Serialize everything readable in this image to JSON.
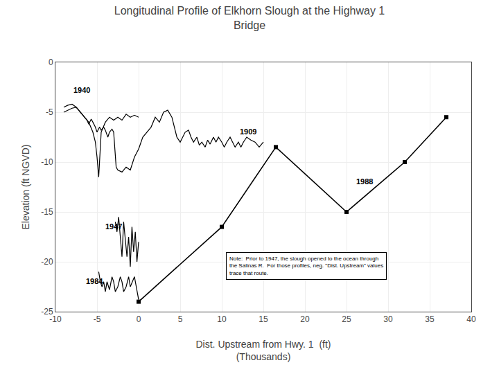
{
  "chart_data": {
    "type": "line",
    "title": "Longitudinal Profile of Elkhorn Slough at the Highway 1\nBridge",
    "xlabel": "Dist. Upstream from Hwy. 1  (ft)\n(Thousands)",
    "ylabel": "Elevation (ft NGVD)",
    "xlim": [
      -10,
      40
    ],
    "ylim": [
      -25,
      0
    ],
    "xticks": [
      -10,
      -5,
      0,
      5,
      10,
      15,
      20,
      25,
      30,
      35,
      40
    ],
    "yticks": [
      -25,
      -20,
      -15,
      -10,
      -5,
      0
    ],
    "grid": true,
    "annotations": [
      {
        "text": "Note:  Prior to 1947, the slough opened to the ocean through\nthe Salinas R.  For those profiles, neg. \"Dist. Upstream\" values\ntrace that route.",
        "x": 10.5,
        "y": -19
      }
    ],
    "series": [
      {
        "name": "1940",
        "color": "#000000",
        "marker": "none",
        "label_x": -8,
        "label_y": -3.3,
        "x": [
          -9,
          -8.5,
          -8,
          -7.5,
          -7,
          -6.5,
          -6,
          -5.5,
          -5.2,
          -5,
          -4.8,
          -4.5,
          -4,
          -3.5,
          -3,
          -2.5,
          -2,
          -1.5,
          -1,
          -0.5,
          0
        ],
        "values": [
          -4.5,
          -4.3,
          -4.2,
          -4.5,
          -5,
          -5.5,
          -6,
          -7,
          -8,
          -9.5,
          -11.5,
          -7,
          -6,
          -5.5,
          -5.8,
          -5.5,
          -5.8,
          -5.2,
          -5.5,
          -5.3,
          -5.5
        ]
      },
      {
        "name": "1909",
        "color": "#000000",
        "marker": "none",
        "label_x": 12,
        "label_y": -7.5,
        "x": [
          -9,
          -8.5,
          -8,
          -7.5,
          -7,
          -6.5,
          -6.2,
          -6,
          -5.7,
          -5.5,
          -5.2,
          -5,
          -4.7,
          -4.5,
          -4.2,
          -4,
          -3.7,
          -3.5,
          -3.2,
          -3,
          -2.7,
          -2.5,
          -2,
          -1.5,
          -1,
          -0.5,
          0,
          0.5,
          1,
          1.5,
          2,
          2.5,
          3,
          3.5,
          4,
          4.3,
          4.6,
          5,
          5.3,
          5.6,
          6,
          6.3,
          6.6,
          7,
          7.3,
          7.6,
          8,
          8.3,
          8.6,
          9,
          9.3,
          9.6,
          10,
          10.3,
          10.6,
          11,
          11.3,
          11.6,
          12,
          12.3,
          12.6,
          13,
          13.5,
          14,
          14.5,
          15
        ],
        "values": [
          -5,
          -4.8,
          -4.6,
          -4.5,
          -5,
          -5.5,
          -5.8,
          -6.2,
          -5.7,
          -6,
          -6.5,
          -7,
          -6.5,
          -6.8,
          -6.5,
          -6.8,
          -7.5,
          -7,
          -6.7,
          -7,
          -10.5,
          -10.8,
          -11,
          -10.5,
          -10.8,
          -9.5,
          -8.7,
          -7.5,
          -7,
          -6.5,
          -5.5,
          -6,
          -5,
          -4.8,
          -5.5,
          -6.5,
          -7.5,
          -8,
          -7.5,
          -7,
          -6.8,
          -7.5,
          -8,
          -7.5,
          -8.3,
          -8,
          -8.5,
          -7.8,
          -8.2,
          -7.5,
          -8,
          -7.5,
          -8,
          -8.5,
          -8,
          -7.5,
          -8,
          -8.5,
          -8,
          -8.5,
          -8,
          -7.5,
          -7.8,
          -8,
          -8.5,
          -8
        ]
      },
      {
        "name": "1947",
        "color": "#000000",
        "marker": "none",
        "label_x": -4.2,
        "label_y": -17,
        "x": [
          -2.8,
          -2.6,
          -2.4,
          -2.2,
          -2,
          -1.8,
          -1.6,
          -1.4,
          -1.2,
          -1,
          -0.8,
          -0.6,
          -0.4,
          -0.2,
          0
        ],
        "values": [
          -16,
          -17,
          -15.5,
          -17.5,
          -19.5,
          -16,
          -18,
          -19.5,
          -17.5,
          -20.5,
          -16.5,
          -19,
          -17,
          -20,
          -18
        ]
      },
      {
        "name": "1984",
        "color": "#000000",
        "marker": "none",
        "label_x": -6.5,
        "label_y": -22.5,
        "x": [
          -4.8,
          -4.6,
          -4.4,
          -4.2,
          -4,
          -3.8,
          -3.5,
          -3.2,
          -3,
          -2.8,
          -2.5,
          -2.2,
          -2,
          -1.8,
          -1.5,
          -1.2,
          -1,
          -0.5,
          0
        ],
        "values": [
          -21,
          -22,
          -22.5,
          -22,
          -23,
          -22,
          -22.8,
          -21.5,
          -22,
          -23,
          -22.5,
          -21.5,
          -22,
          -23,
          -22.5,
          -21.5,
          -22.5,
          -21.5,
          -23.8
        ]
      },
      {
        "name": "1988",
        "color": "#000000",
        "marker": "square",
        "label_x": 26,
        "label_y": -12.5,
        "x": [
          0,
          10,
          16.5,
          25,
          32,
          37
        ],
        "values": [
          -24,
          -16.5,
          -8.5,
          -15,
          -10,
          -5.5
        ]
      }
    ]
  }
}
